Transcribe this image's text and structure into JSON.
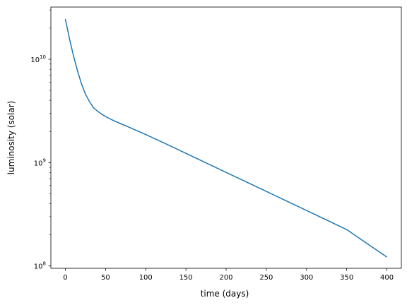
{
  "chart_data": {
    "type": "line",
    "title": "",
    "xlabel": "time (days)",
    "ylabel": "luminosity (solar)",
    "xlim": [
      -18,
      418
    ],
    "ylim": [
      95000000.0,
      32000000000.0
    ],
    "yscale": "log",
    "grid": false,
    "xticks": [
      0,
      50,
      100,
      150,
      200,
      250,
      300,
      350,
      400
    ],
    "xtick_labels": [
      "0",
      "50",
      "100",
      "150",
      "200",
      "250",
      "300",
      "350",
      "400"
    ],
    "yticks": [
      100000000.0,
      1000000000.0,
      10000000000.0
    ],
    "ytick_labels": [
      {
        "base": "10",
        "exp": "8"
      },
      {
        "base": "10",
        "exp": "9"
      },
      {
        "base": "10",
        "exp": "10"
      }
    ],
    "series": [
      {
        "color": "#1f77b4",
        "x": [
          0,
          5,
          10,
          15,
          20,
          25,
          30,
          35,
          40,
          45,
          50,
          60,
          70,
          80,
          100,
          125,
          150,
          175,
          200,
          250,
          300,
          350,
          400
        ],
        "y": [
          24500000000.0,
          16000000000.0,
          10900000000.0,
          7800000000.0,
          5800000000.0,
          4600000000.0,
          3900000000.0,
          3400000000.0,
          3150000000.0,
          2950000000.0,
          2790000000.0,
          2550000000.0,
          2360000000.0,
          2190000000.0,
          1870000000.0,
          1520000000.0,
          1230000000.0,
          995000000.0,
          805000000.0,
          527000000.0,
          345000000.0,
          225000000.0,
          122000000.0
        ]
      }
    ]
  }
}
